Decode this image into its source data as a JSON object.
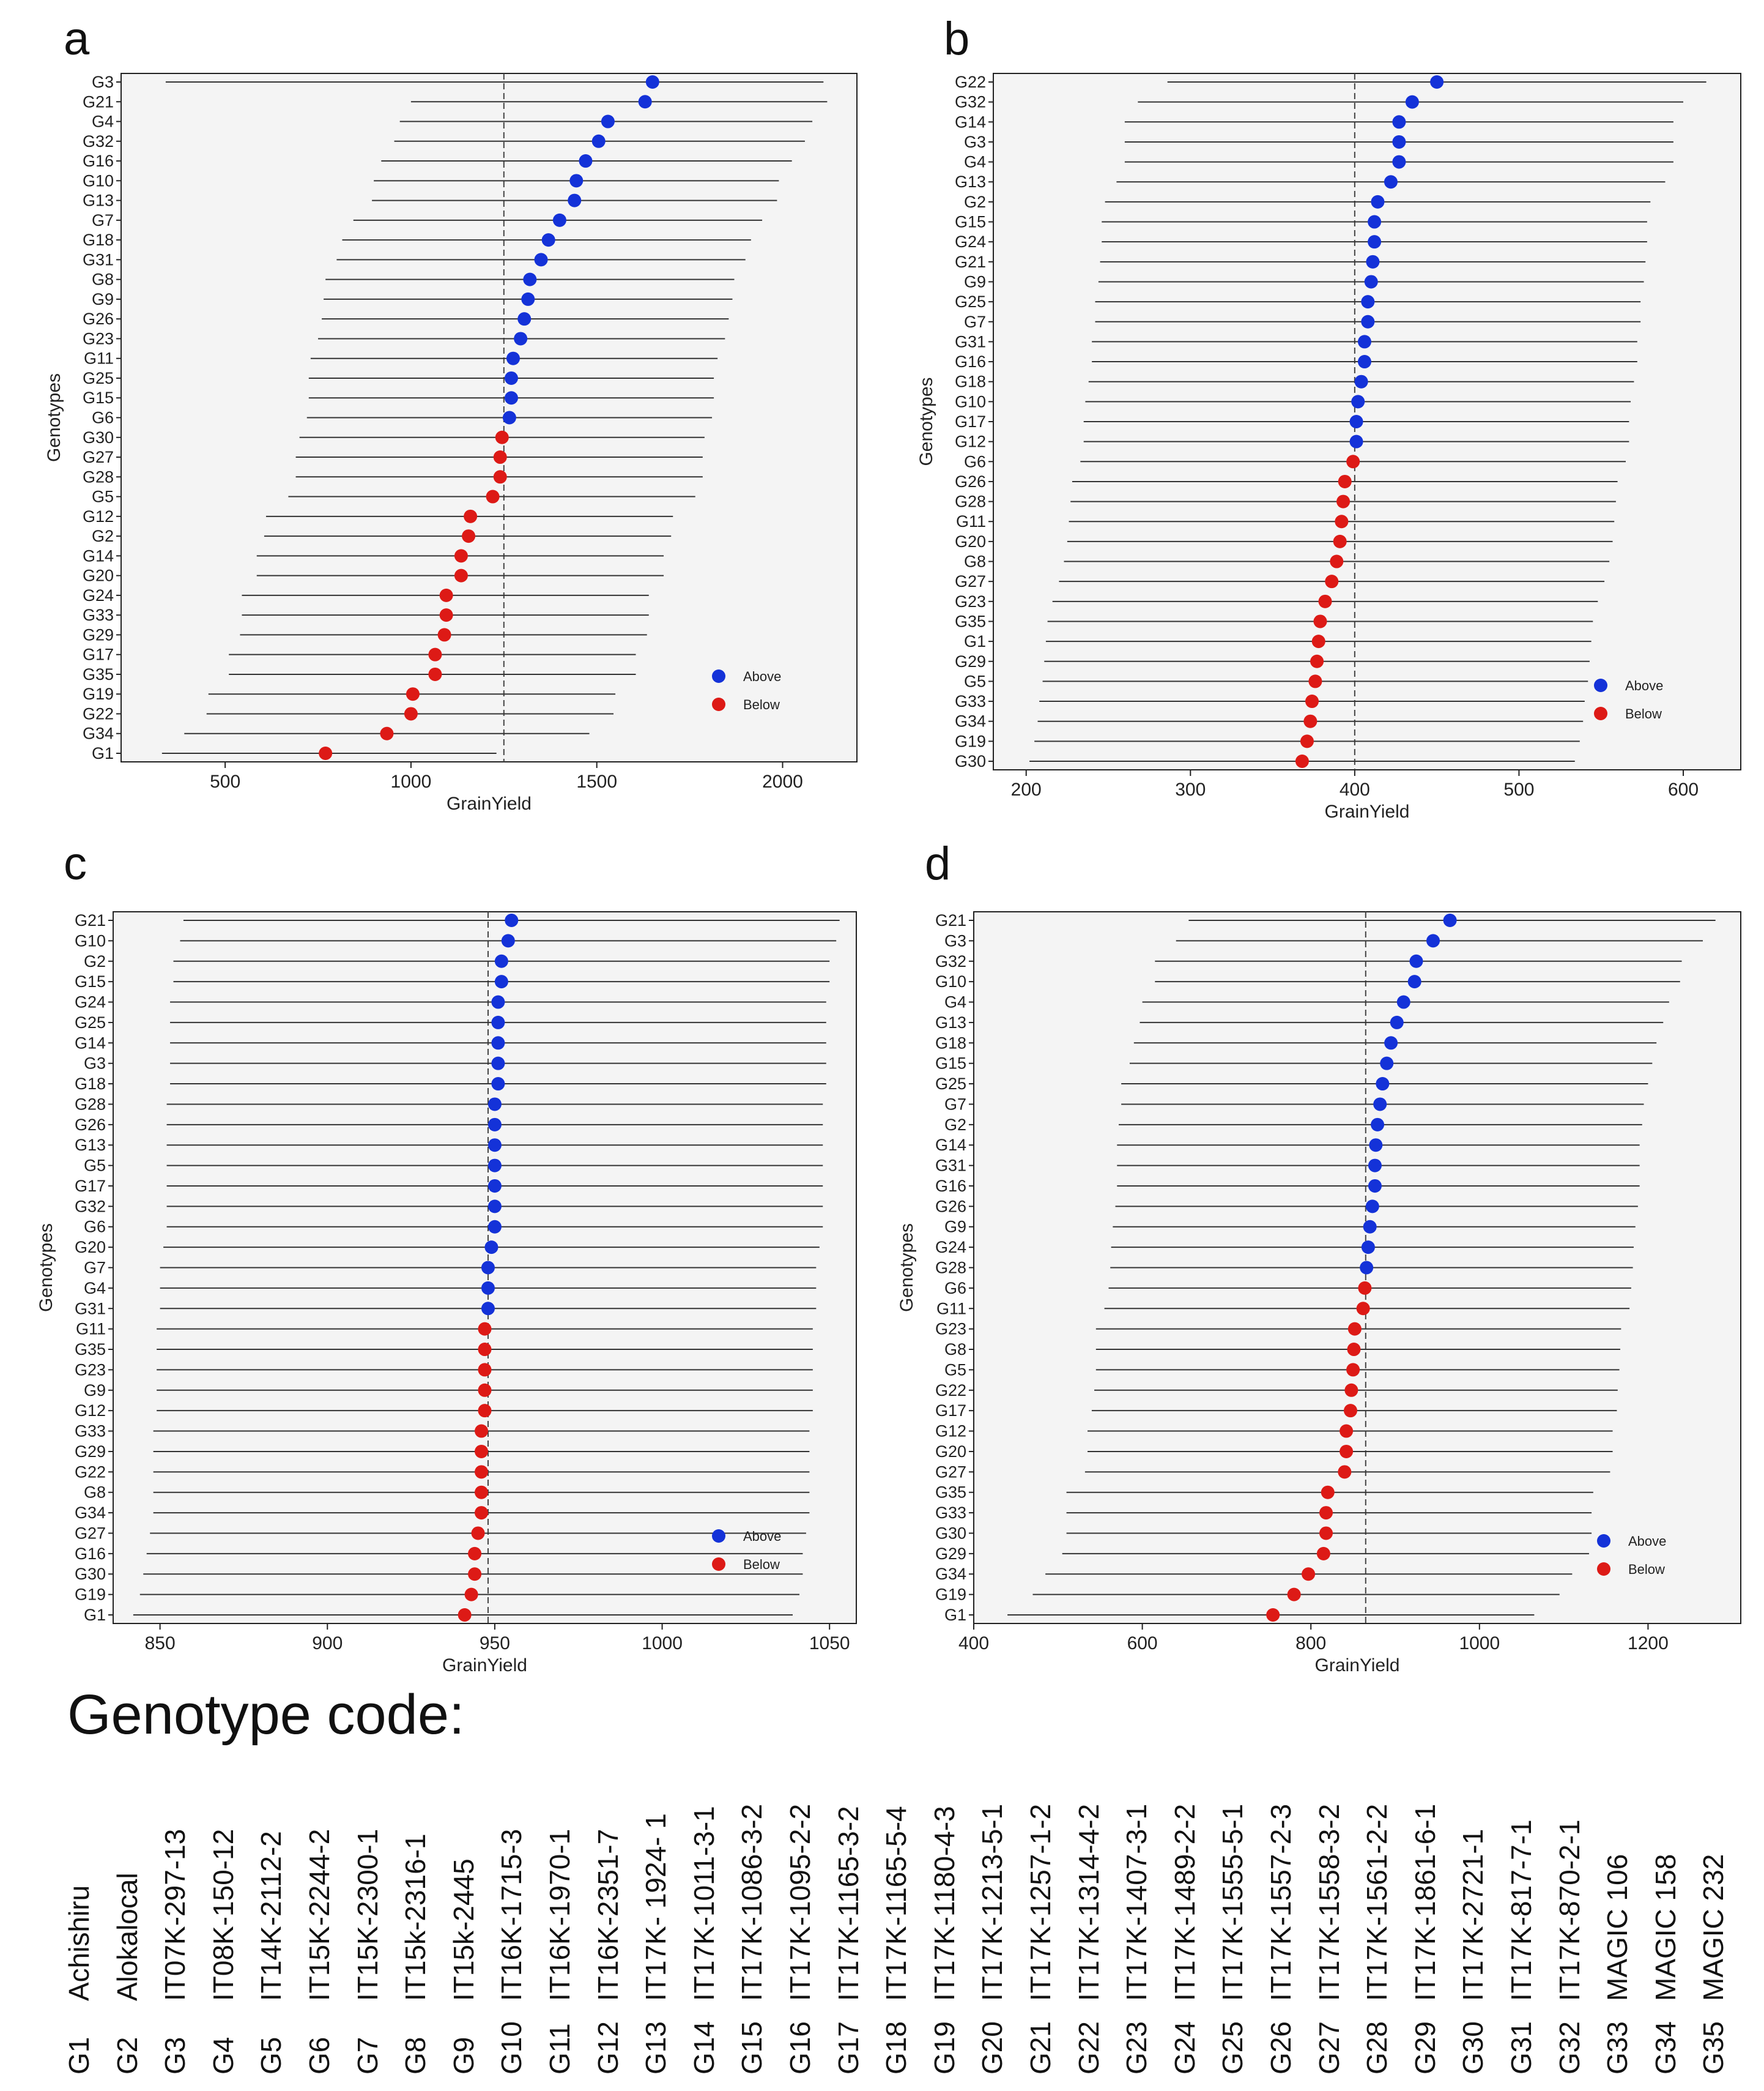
{
  "colors": {
    "above": "#1432d8",
    "below": "#dd1a16",
    "panel_bg": "#f4f4f4",
    "whisker": "#333333"
  },
  "chart_data": [
    {
      "panel": "a",
      "type": "scatter",
      "xlabel": "GrainYield",
      "ylabel": "Genotypes",
      "xlim": [
        220,
        2200
      ],
      "xticks": [
        500,
        1000,
        1500,
        2000
      ],
      "mean": 1250,
      "legend": {
        "above": "Above",
        "below": "Below",
        "position": "bottom-right"
      },
      "genotypes": [
        "G3",
        "G21",
        "G4",
        "G32",
        "G16",
        "G10",
        "G13",
        "G7",
        "G18",
        "G31",
        "G8",
        "G9",
        "G26",
        "G23",
        "G11",
        "G25",
        "G15",
        "G6",
        "G30",
        "G27",
        "G28",
        "G5",
        "G12",
        "G2",
        "G14",
        "G20",
        "G24",
        "G33",
        "G29",
        "G17",
        "G35",
        "G19",
        "G22",
        "G34",
        "G1"
      ],
      "values": [
        1650,
        1630,
        1530,
        1505,
        1470,
        1445,
        1440,
        1400,
        1370,
        1350,
        1320,
        1315,
        1305,
        1295,
        1275,
        1270,
        1270,
        1265,
        1245,
        1240,
        1240,
        1220,
        1160,
        1155,
        1135,
        1135,
        1095,
        1095,
        1090,
        1065,
        1065,
        1005,
        1000,
        935,
        770
      ],
      "lower": [
        340,
        1000,
        970,
        955,
        920,
        900,
        895,
        845,
        815,
        800,
        770,
        765,
        760,
        750,
        730,
        725,
        725,
        720,
        700,
        690,
        690,
        670,
        610,
        605,
        585,
        585,
        545,
        545,
        540,
        510,
        510,
        455,
        450,
        390,
        330
      ],
      "upper": [
        2110,
        2120,
        2080,
        2060,
        2025,
        1990,
        1985,
        1945,
        1915,
        1900,
        1870,
        1865,
        1855,
        1845,
        1825,
        1815,
        1815,
        1810,
        1790,
        1785,
        1785,
        1765,
        1705,
        1700,
        1680,
        1680,
        1640,
        1640,
        1635,
        1605,
        1605,
        1550,
        1545,
        1480,
        1230
      ]
    },
    {
      "panel": "b",
      "type": "scatter",
      "xlabel": "GrainYield",
      "ylabel": "Genotypes",
      "xlim": [
        180,
        635
      ],
      "xticks": [
        200,
        300,
        400,
        500,
        600
      ],
      "mean": 400,
      "legend": {
        "above": "Above",
        "below": "Below",
        "position": "bottom-right"
      },
      "genotypes": [
        "G22",
        "G32",
        "G14",
        "G3",
        "G4",
        "G13",
        "G2",
        "G15",
        "G24",
        "G21",
        "G9",
        "G25",
        "G7",
        "G31",
        "G16",
        "G18",
        "G10",
        "G17",
        "G12",
        "G6",
        "G26",
        "G28",
        "G11",
        "G20",
        "G8",
        "G27",
        "G23",
        "G35",
        "G1",
        "G29",
        "G5",
        "G33",
        "G34",
        "G19",
        "G30"
      ],
      "values": [
        450,
        435,
        427,
        427,
        427,
        422,
        414,
        412,
        412,
        411,
        410,
        408,
        408,
        406,
        406,
        404,
        402,
        401,
        401,
        399,
        394,
        393,
        392,
        391,
        389,
        386,
        382,
        379,
        378,
        377,
        376,
        374,
        373,
        371,
        368
      ],
      "lower": [
        286,
        268,
        260,
        260,
        260,
        255,
        248,
        246,
        246,
        245,
        244,
        242,
        242,
        240,
        240,
        238,
        236,
        235,
        235,
        233,
        228,
        227,
        226,
        225,
        223,
        220,
        216,
        213,
        212,
        211,
        210,
        208,
        207,
        205,
        202
      ],
      "upper": [
        614,
        600,
        594,
        594,
        594,
        589,
        580,
        578,
        578,
        577,
        576,
        574,
        574,
        572,
        572,
        570,
        568,
        567,
        567,
        565,
        560,
        559,
        558,
        557,
        555,
        552,
        548,
        545,
        544,
        543,
        542,
        540,
        539,
        537,
        534
      ]
    },
    {
      "panel": "c",
      "type": "scatter",
      "xlabel": "GrainYield",
      "ylabel": "Genotypes",
      "xlim": [
        836,
        1058
      ],
      "xticks": [
        850,
        900,
        950,
        1000,
        1050
      ],
      "mean": 948,
      "legend": {
        "above": "Above",
        "below": "Below",
        "position": "bottom-right"
      },
      "genotypes": [
        "G21",
        "G10",
        "G2",
        "G15",
        "G24",
        "G25",
        "G14",
        "G3",
        "G18",
        "G28",
        "G26",
        "G13",
        "G5",
        "G17",
        "G32",
        "G6",
        "G20",
        "G7",
        "G4",
        "G31",
        "G11",
        "G35",
        "G23",
        "G9",
        "G12",
        "G33",
        "G29",
        "G22",
        "G8",
        "G34",
        "G27",
        "G16",
        "G30",
        "G19",
        "G1"
      ],
      "values": [
        955,
        954,
        952,
        952,
        951,
        951,
        951,
        951,
        951,
        950,
        950,
        950,
        950,
        950,
        950,
        950,
        949,
        948,
        948,
        948,
        947,
        947,
        947,
        947,
        947,
        946,
        946,
        946,
        946,
        946,
        945,
        944,
        944,
        943,
        941
      ],
      "lower": [
        857,
        856,
        854,
        854,
        853,
        853,
        853,
        853,
        853,
        852,
        852,
        852,
        852,
        852,
        852,
        852,
        851,
        850,
        850,
        850,
        849,
        849,
        849,
        849,
        849,
        848,
        848,
        848,
        848,
        848,
        847,
        846,
        845,
        844,
        842
      ],
      "upper": [
        1053,
        1052,
        1050,
        1050,
        1049,
        1049,
        1049,
        1049,
        1049,
        1048,
        1048,
        1048,
        1048,
        1048,
        1048,
        1048,
        1047,
        1046,
        1046,
        1046,
        1045,
        1045,
        1045,
        1045,
        1045,
        1044,
        1044,
        1044,
        1044,
        1044,
        1043,
        1042,
        1042,
        1041,
        1039
      ]
    },
    {
      "panel": "d",
      "type": "scatter",
      "xlabel": "GrainYield",
      "ylabel": "Genotypes",
      "xlim": [
        400,
        1310
      ],
      "xticks": [
        400,
        600,
        800,
        1000,
        1200
      ],
      "mean": 865,
      "legend": {
        "above": "Above",
        "below": "Below",
        "position": "bottom-right"
      },
      "genotypes": [
        "G21",
        "G3",
        "G32",
        "G10",
        "G4",
        "G13",
        "G18",
        "G15",
        "G25",
        "G7",
        "G2",
        "G14",
        "G31",
        "G16",
        "G26",
        "G9",
        "G24",
        "G28",
        "G6",
        "G11",
        "G23",
        "G8",
        "G5",
        "G22",
        "G17",
        "G12",
        "G20",
        "G27",
        "G35",
        "G33",
        "G30",
        "G29",
        "G34",
        "G19",
        "G1"
      ],
      "values": [
        965,
        945,
        925,
        923,
        910,
        902,
        895,
        890,
        885,
        882,
        879,
        877,
        876,
        876,
        873,
        870,
        868,
        866,
        864,
        862,
        852,
        851,
        850,
        848,
        847,
        842,
        842,
        840,
        820,
        818,
        818,
        815,
        797,
        780,
        755
      ],
      "lower": [
        655,
        640,
        615,
        615,
        600,
        597,
        590,
        585,
        575,
        575,
        572,
        570,
        570,
        570,
        568,
        565,
        563,
        562,
        560,
        555,
        545,
        545,
        545,
        543,
        540,
        535,
        535,
        532,
        510,
        510,
        510,
        505,
        485,
        470,
        440
      ],
      "upper": [
        1280,
        1265,
        1240,
        1238,
        1225,
        1218,
        1210,
        1205,
        1200,
        1195,
        1193,
        1190,
        1190,
        1190,
        1188,
        1185,
        1183,
        1182,
        1180,
        1178,
        1168,
        1167,
        1166,
        1164,
        1163,
        1158,
        1158,
        1155,
        1135,
        1133,
        1133,
        1130,
        1110,
        1095,
        1065
      ]
    }
  ],
  "genotype_code": {
    "title": "Genotype code:",
    "entries": [
      {
        "id": "G1",
        "name": "Achishiru"
      },
      {
        "id": "G2",
        "name": "Alokalocal"
      },
      {
        "id": "G3",
        "name": "IT07K-297-13"
      },
      {
        "id": "G4",
        "name": "IT08K-150-12"
      },
      {
        "id": "G5",
        "name": "IT14K-2112-2"
      },
      {
        "id": "G6",
        "name": "IT15K-2244-2"
      },
      {
        "id": "G7",
        "name": "IT15K-2300-1"
      },
      {
        "id": "G8",
        "name": "IT15k-2316-1"
      },
      {
        "id": "G9",
        "name": "IT15k-2445"
      },
      {
        "id": "G10",
        "name": "IT16K-1715-3"
      },
      {
        "id": "G11",
        "name": "IT16K-1970-1"
      },
      {
        "id": "G12",
        "name": "IT16K-2351-7"
      },
      {
        "id": "G13",
        "name": "IT17K- 1924- 1"
      },
      {
        "id": "G14",
        "name": "IT17K-1011-3-1"
      },
      {
        "id": "G15",
        "name": "IT17K-1086-3-2"
      },
      {
        "id": "G16",
        "name": "IT17K-1095-2-2"
      },
      {
        "id": "G17",
        "name": "IT17K-1165-3-2"
      },
      {
        "id": "G18",
        "name": "IT17K-1165-5-4"
      },
      {
        "id": "G19",
        "name": "IT17K-1180-4-3"
      },
      {
        "id": "G20",
        "name": "IT17K-1213-5-1"
      },
      {
        "id": "G21",
        "name": "IT17K-1257-1-2"
      },
      {
        "id": "G22",
        "name": "IT17K-1314-4-2"
      },
      {
        "id": "G23",
        "name": "IT17K-1407-3-1"
      },
      {
        "id": "G24",
        "name": "IT17K-1489-2-2"
      },
      {
        "id": "G25",
        "name": "IT17K-1555-5-1"
      },
      {
        "id": "G26",
        "name": "IT17K-1557-2-3"
      },
      {
        "id": "G27",
        "name": "IT17K-1558-3-2"
      },
      {
        "id": "G28",
        "name": "IT17K-1561-2-2"
      },
      {
        "id": "G29",
        "name": "IT17K-1861-6-1"
      },
      {
        "id": "G30",
        "name": "IT17K-2721-1"
      },
      {
        "id": "G31",
        "name": "IT17K-817-7-1"
      },
      {
        "id": "G32",
        "name": "IT17K-870-2-1"
      },
      {
        "id": "G33",
        "name": "MAGIC 106"
      },
      {
        "id": "G34",
        "name": "MAGIC 158"
      },
      {
        "id": "G35",
        "name": "MAGIC 232"
      }
    ]
  }
}
